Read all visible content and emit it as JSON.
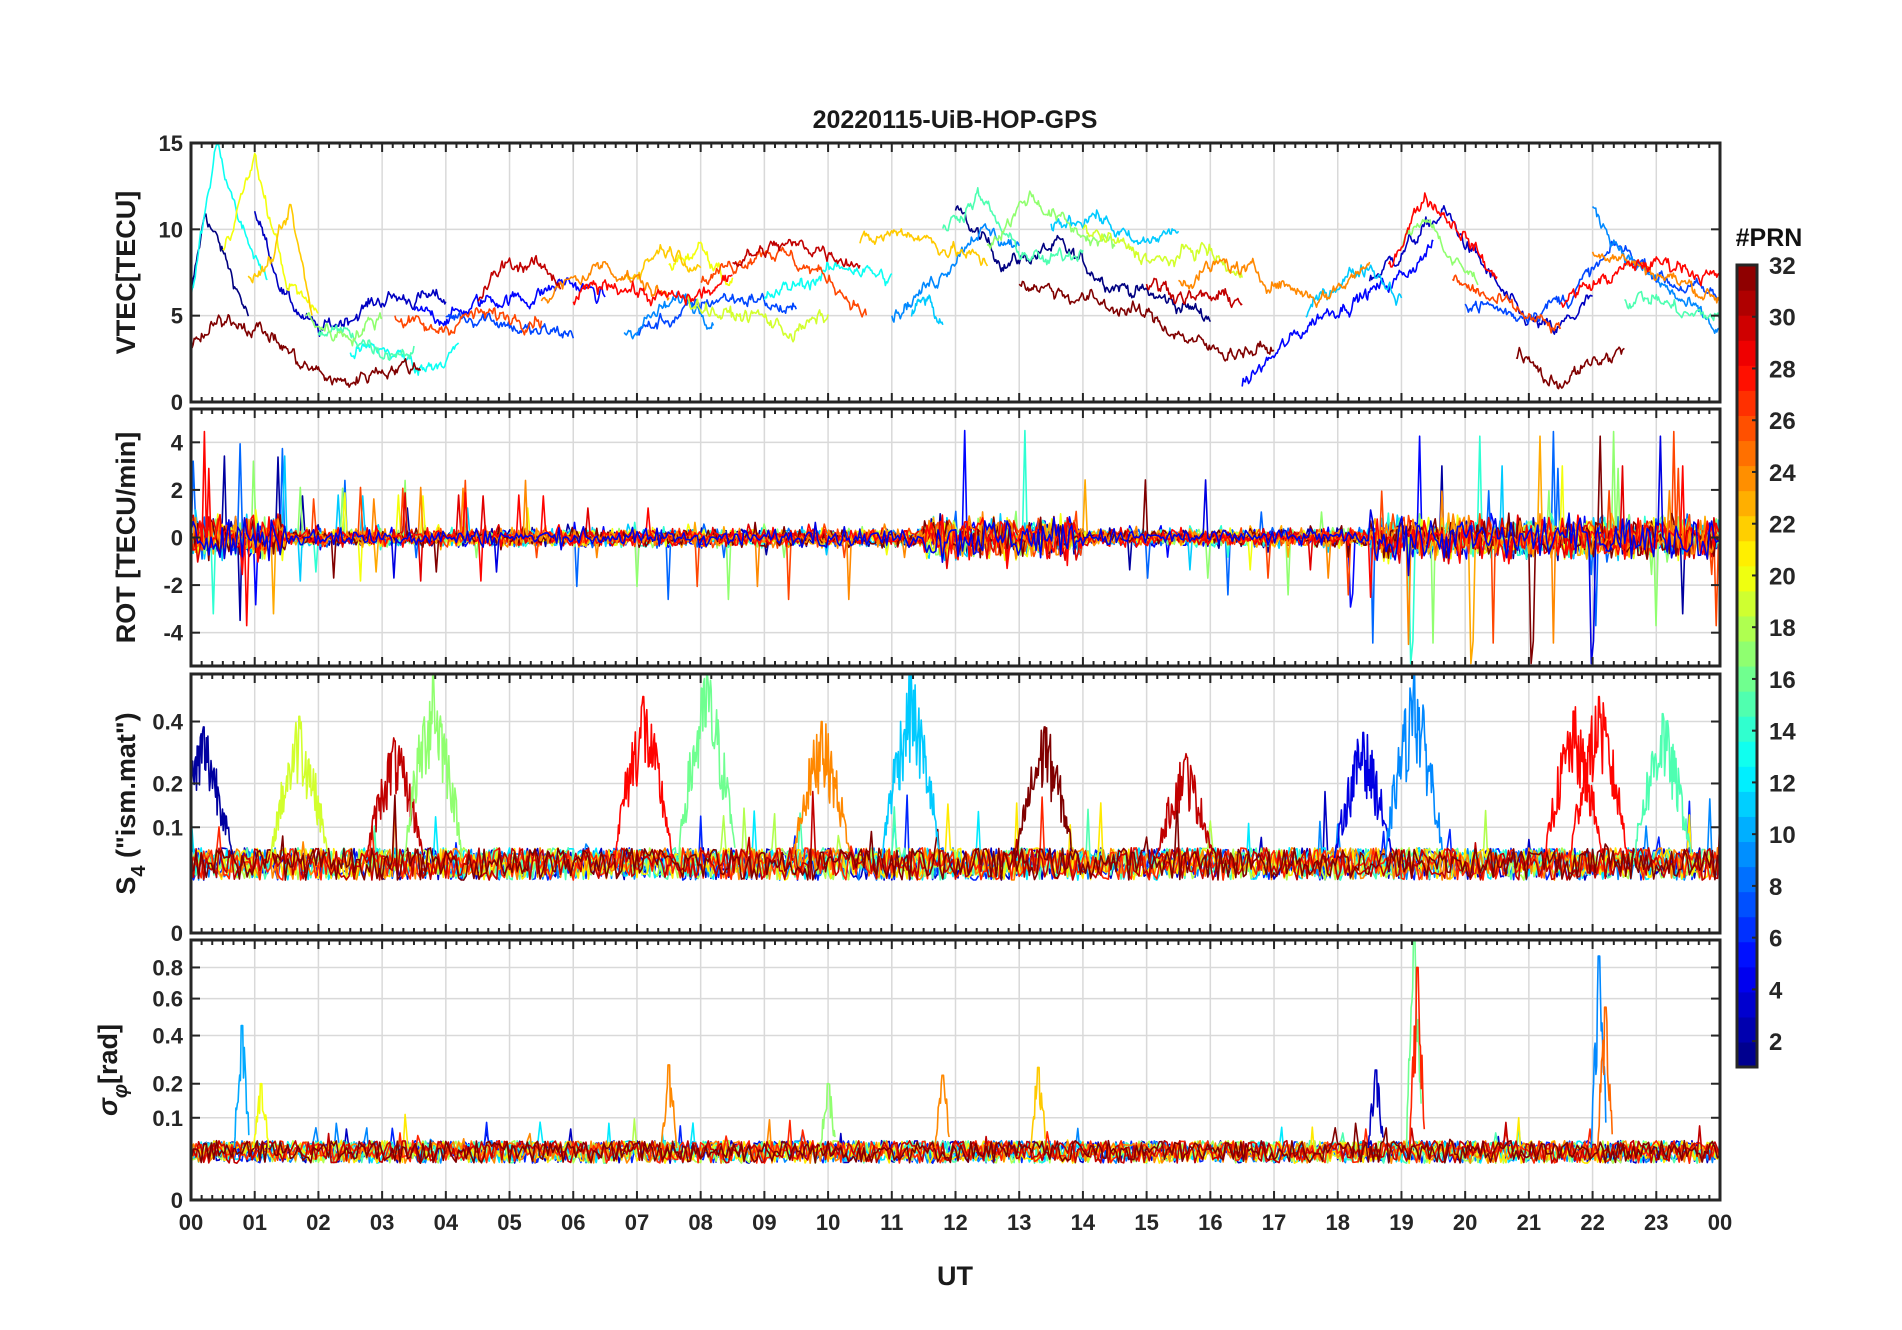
{
  "chart_data": {
    "type": "line",
    "title": "20220115-UiB-HOP-GPS",
    "xlabel": "UT",
    "x_range_hours": [
      0,
      24
    ],
    "x_tick_labels": [
      "00",
      "01",
      "02",
      "03",
      "04",
      "05",
      "06",
      "07",
      "08",
      "09",
      "10",
      "11",
      "12",
      "13",
      "14",
      "15",
      "16",
      "17",
      "18",
      "19",
      "20",
      "21",
      "22",
      "23",
      "00"
    ],
    "grid": true,
    "colorbar": {
      "title": "#PRN",
      "range": [
        1,
        32
      ],
      "tick_labels": [
        "2",
        "4",
        "6",
        "8",
        "10",
        "12",
        "14",
        "16",
        "18",
        "20",
        "22",
        "24",
        "26",
        "28",
        "30",
        "32"
      ],
      "colormap": "jet"
    },
    "panels": [
      {
        "id": "vtec",
        "ylabel": "VTEC[TECU]",
        "ylim": [
          0,
          15
        ],
        "y_ticks": [
          0,
          5,
          10,
          15
        ],
        "y_tick_labels": [
          "0",
          "5",
          "10",
          "15"
        ],
        "description_levels": {
          "typical_min": 2,
          "typical_max": 13
        },
        "events_hours": [
          0.4,
          19.2,
          22.1
        ],
        "series": [
          {
            "prn": 1,
            "segments": [
              {
                "start": 0.0,
                "end": 0.9,
                "points": [
                  6,
                  11,
                  9,
                  7,
                  5
                ]
              },
              {
                "start": 12.0,
                "end": 16.0,
                "points": [
                  11,
                  8,
                  9,
                  7,
                  6,
                  5
                ]
              }
            ]
          },
          {
            "prn": 3,
            "segments": [
              {
                "start": 1.0,
                "end": 4.0,
                "points": [
                  11,
                  6,
                  4,
                  5,
                  6,
                  6,
                  6
                ]
              },
              {
                "start": 18.5,
                "end": 22.0,
                "points": [
                  7,
                  9,
                  11,
                  8,
                  5,
                  4,
                  6
                ]
              }
            ]
          },
          {
            "prn": 5,
            "segments": [
              {
                "start": 3.5,
                "end": 6.5,
                "points": [
                  5,
                  5,
                  6,
                  6,
                  7,
                  6
                ]
              },
              {
                "start": 16.5,
                "end": 19.5,
                "points": [
                  1,
                  3,
                  5,
                  6,
                  7,
                  9
                ]
              }
            ]
          },
          {
            "prn": 7,
            "segments": [
              {
                "start": 4.0,
                "end": 6.0,
                "points": [
                  5,
                  5,
                  4,
                  4
                ]
              },
              {
                "start": 7.0,
                "end": 9.5,
                "points": [
                  4,
                  5,
                  6,
                  6,
                  5
                ]
              },
              {
                "start": 20.0,
                "end": 24.0,
                "points": [
                  6,
                  5,
                  6,
                  9,
                  7,
                  6
                ]
              }
            ]
          },
          {
            "prn": 9,
            "segments": [
              {
                "start": 6.8,
                "end": 8.2,
                "points": [
                  4,
                  5,
                  6,
                  5
                ]
              },
              {
                "start": 11.0,
                "end": 13.0,
                "points": [
                  5,
                  7,
                  10,
                  9
                ]
              },
              {
                "start": 22.0,
                "end": 24.0,
                "points": [
                  11,
                  8,
                  6,
                  4
                ]
              }
            ]
          },
          {
            "prn": 11,
            "segments": [
              {
                "start": 11.3,
                "end": 11.8,
                "points": [
                  5,
                  6,
                  4
                ]
              },
              {
                "start": 13.5,
                "end": 15.5,
                "points": [
                  10,
                  11,
                  9,
                  10
                ]
              },
              {
                "start": 17.5,
                "end": 19.0,
                "points": [
                  5,
                  7,
                  8,
                  6
                ]
              }
            ]
          },
          {
            "prn": 13,
            "segments": [
              {
                "start": 0.0,
                "end": 1.2,
                "points": [
                  6,
                  15,
                  10,
                  7
                ]
              },
              {
                "start": 2.5,
                "end": 4.2,
                "points": [
                  3,
                  3,
                  2,
                  3
                ]
              },
              {
                "start": 9.0,
                "end": 11.0,
                "points": [
                  6,
                  7,
                  8,
                  7
                ]
              }
            ]
          },
          {
            "prn": 15,
            "segments": [
              {
                "start": 2.0,
                "end": 3.5,
                "points": [
                  4,
                  4,
                  3,
                  3
                ]
              },
              {
                "start": 11.8,
                "end": 14.0,
                "points": [
                  10,
                  12,
                  9,
                  8,
                  9
                ]
              },
              {
                "start": 22.5,
                "end": 24.0,
                "points": [
                  6,
                  6,
                  5,
                  5
                ]
              }
            ]
          },
          {
            "prn": 17,
            "segments": [
              {
                "start": 1.8,
                "end": 3.0,
                "points": [
                  5,
                  4,
                  4,
                  5
                ]
              },
              {
                "start": 12.5,
                "end": 14.5,
                "points": [
                  9,
                  12,
                  10,
                  9
                ]
              },
              {
                "start": 19.0,
                "end": 20.2,
                "points": [
                  9,
                  11,
                  8,
                  7
                ]
              }
            ]
          },
          {
            "prn": 19,
            "segments": [
              {
                "start": 7.8,
                "end": 10.0,
                "points": [
                  6,
                  5,
                  5,
                  4,
                  5
                ]
              },
              {
                "start": 14.0,
                "end": 16.5,
                "points": [
                  10,
                  9,
                  8,
                  9,
                  7
                ]
              }
            ]
          },
          {
            "prn": 20,
            "segments": [
              {
                "start": 0.5,
                "end": 2.0,
                "points": [
                  9,
                  14,
                  7,
                  5
                ]
              },
              {
                "start": 7.5,
                "end": 8.5,
                "points": [
                  8,
                  9,
                  7
                ]
              }
            ]
          },
          {
            "prn": 22,
            "segments": [
              {
                "start": 0.9,
                "end": 1.9,
                "points": [
                  7,
                  8,
                  11,
                  5
                ]
              },
              {
                "start": 6.8,
                "end": 8.0,
                "points": [
                  7,
                  9,
                  8
                ]
              },
              {
                "start": 10.5,
                "end": 12.5,
                "points": [
                  9,
                  10,
                  9,
                  8
                ]
              }
            ]
          },
          {
            "prn": 24,
            "segments": [
              {
                "start": 5.5,
                "end": 7.5,
                "points": [
                  6,
                  7,
                  8,
                  7,
                  6
                ]
              },
              {
                "start": 15.5,
                "end": 18.5,
                "points": [
                  7,
                  8,
                  7,
                  6,
                  8
                ]
              },
              {
                "start": 22.0,
                "end": 24.0,
                "points": [
                  9,
                  8,
                  7,
                  6
                ]
              }
            ]
          },
          {
            "prn": 26,
            "segments": [
              {
                "start": 3.2,
                "end": 5.5,
                "points": [
                  5,
                  4,
                  5,
                  5,
                  5
                ]
              },
              {
                "start": 8.0,
                "end": 10.6,
                "points": [
                  7,
                  8,
                  9,
                  8,
                  7,
                  5
                ]
              },
              {
                "start": 19.8,
                "end": 21.5,
                "points": [
                  7,
                  6,
                  5,
                  4
                ]
              }
            ]
          },
          {
            "prn": 28,
            "segments": [
              {
                "start": 6.0,
                "end": 8.5,
                "points": [
                  6,
                  7,
                  6,
                  6,
                  7
                ]
              },
              {
                "start": 18.8,
                "end": 20.5,
                "points": [
                  8,
                  12,
                  10,
                  7
                ]
              },
              {
                "start": 21.5,
                "end": 24.0,
                "points": [
                  6,
                  7,
                  8,
                  8,
                  7
                ]
              }
            ]
          },
          {
            "prn": 30,
            "segments": [
              {
                "start": 4.5,
                "end": 5.8,
                "points": [
                  6,
                  8,
                  8,
                  7
                ]
              },
              {
                "start": 8.5,
                "end": 10.5,
                "points": [
                  8,
                  9,
                  9,
                  8
                ]
              },
              {
                "start": 15.0,
                "end": 16.5,
                "points": [
                  7,
                  6,
                  6
                ]
              }
            ]
          },
          {
            "prn": 32,
            "segments": [
              {
                "start": 0.0,
                "end": 3.6,
                "points": [
                  3,
                  5,
                  4,
                  2,
                  1,
                  2,
                  2
                ]
              },
              {
                "start": 13.0,
                "end": 17.0,
                "points": [
                  7,
                  6,
                  5,
                  3,
                  3
                ]
              },
              {
                "start": 20.8,
                "end": 22.5,
                "points": [
                  3,
                  1,
                  2,
                  3
                ]
              }
            ]
          }
        ]
      },
      {
        "id": "rot",
        "ylabel": "ROT [TECU/min]",
        "ylim": [
          -5.4,
          5.4
        ],
        "y_ticks": [
          -4,
          -2,
          0,
          2,
          4
        ],
        "y_tick_labels": [
          "-4",
          "-2",
          "0",
          "2",
          "4"
        ],
        "typical_amplitude": 0.8,
        "max_abs_value": 5.2,
        "active_intervals_hours": [
          [
            0.0,
            1.5
          ],
          [
            11.5,
            14.0
          ],
          [
            18.5,
            24.0
          ]
        ]
      },
      {
        "id": "s4",
        "ylabel_main": "S",
        "ylabel_sub": "4",
        "ylabel_tail": " (\"ism.mat\")",
        "ylim": [
          0,
          0.6
        ],
        "y_ticks": [
          0,
          0.1,
          0.2,
          0.4
        ],
        "y_tick_labels": [
          "0",
          "0.1",
          "0.2",
          "0.4"
        ],
        "axis_scale": "sqrt",
        "background_level": 0.05,
        "peaks": [
          {
            "hour": 0.2,
            "value": 0.38,
            "prn": 2
          },
          {
            "hour": 1.7,
            "value": 0.42,
            "prn": 19
          },
          {
            "hour": 3.2,
            "value": 0.33,
            "prn": 30
          },
          {
            "hour": 3.8,
            "value": 0.6,
            "prn": 17
          },
          {
            "hour": 7.1,
            "value": 0.5,
            "prn": 28
          },
          {
            "hour": 8.1,
            "value": 0.62,
            "prn": 16
          },
          {
            "hour": 9.9,
            "value": 0.4,
            "prn": 24
          },
          {
            "hour": 11.3,
            "value": 0.6,
            "prn": 11
          },
          {
            "hour": 13.4,
            "value": 0.38,
            "prn": 32
          },
          {
            "hour": 15.6,
            "value": 0.27,
            "prn": 30
          },
          {
            "hour": 18.4,
            "value": 0.36,
            "prn": 4
          },
          {
            "hour": 19.2,
            "value": 0.6,
            "prn": 9
          },
          {
            "hour": 21.7,
            "value": 0.44,
            "prn": 28
          },
          {
            "hour": 22.1,
            "value": 0.5,
            "prn": 28
          },
          {
            "hour": 23.1,
            "value": 0.43,
            "prn": 15
          }
        ]
      },
      {
        "id": "sigma_phi",
        "ylabel_main": "σ",
        "ylabel_sub": "φ",
        "ylabel_tail": "[rad]",
        "ylim": [
          0,
          1.0
        ],
        "y_ticks": [
          0,
          0.1,
          0.2,
          0.4,
          0.6,
          0.8
        ],
        "y_tick_labels": [
          "0",
          "0.1",
          "0.2",
          "0.4",
          "0.6",
          "0.8"
        ],
        "axis_scale": "sqrt",
        "background_level": 0.04,
        "peaks": [
          {
            "hour": 0.8,
            "value": 0.45,
            "prn": 10
          },
          {
            "hour": 1.1,
            "value": 0.2,
            "prn": 20
          },
          {
            "hour": 7.5,
            "value": 0.27,
            "prn": 24
          },
          {
            "hour": 10.0,
            "value": 0.2,
            "prn": 17
          },
          {
            "hour": 11.8,
            "value": 0.23,
            "prn": 24
          },
          {
            "hour": 13.3,
            "value": 0.26,
            "prn": 22
          },
          {
            "hour": 18.6,
            "value": 0.25,
            "prn": 3
          },
          {
            "hour": 19.2,
            "value": 1.0,
            "prn": 16
          },
          {
            "hour": 19.25,
            "value": 0.8,
            "prn": 27
          },
          {
            "hour": 22.1,
            "value": 0.88,
            "prn": 9
          },
          {
            "hour": 22.2,
            "value": 0.55,
            "prn": 25
          }
        ]
      }
    ]
  }
}
